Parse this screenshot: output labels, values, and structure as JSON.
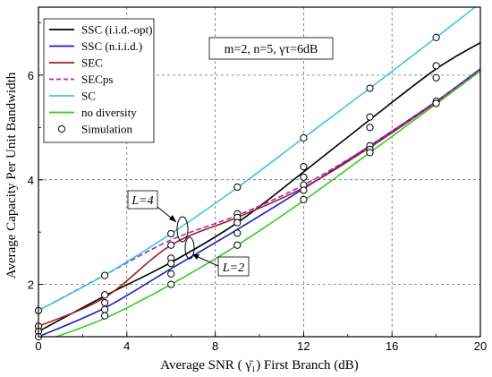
{
  "chart_data": {
    "type": "line",
    "xlabel": "Average SNR ( γ̄₁) First Branch (dB)",
    "ylabel": "Average Capacity Per Unit Bandwidth",
    "xlim": [
      0,
      20
    ],
    "ylim": [
      1,
      7.3
    ],
    "xticks": [
      0,
      4,
      8,
      12,
      16,
      20
    ],
    "yticks": [
      2,
      4,
      6
    ],
    "grid": true,
    "legend_position": "top-left",
    "series": [
      {
        "name": "SSC (i.i.d.-opt)",
        "color": "#000000",
        "dash": "solid",
        "x": [
          0,
          3,
          6,
          9,
          12,
          15,
          18,
          20
        ],
        "y": [
          1.1,
          1.78,
          2.42,
          3.18,
          4.15,
          5.15,
          6.12,
          6.62
        ]
      },
      {
        "name": "SSC (n.i.i.d.)",
        "color": "#1f1fbf",
        "dash": "solid",
        "x": [
          0,
          3,
          6,
          9,
          12,
          15,
          18,
          20
        ],
        "y": [
          1.0,
          1.55,
          2.3,
          3.05,
          3.83,
          4.65,
          5.5,
          6.12
        ]
      },
      {
        "name": "SEC",
        "color": "#a02020",
        "dash": "solid",
        "x": [
          0,
          3,
          6,
          9,
          12,
          15,
          18,
          20
        ],
        "y": [
          1.2,
          1.75,
          2.75,
          3.28,
          3.85,
          4.62,
          5.48,
          6.1
        ]
      },
      {
        "name": "SECps",
        "color": "#9b30c0",
        "dash": "dashed",
        "x": [
          0,
          3,
          6,
          9,
          12,
          15,
          18,
          20
        ],
        "y": [
          1.5,
          2.18,
          2.85,
          3.32,
          3.9,
          4.65,
          5.5,
          6.1
        ]
      },
      {
        "name": "SC",
        "color": "#3fc4e8",
        "dash": "solid",
        "x": [
          0,
          3,
          6,
          9,
          12,
          15,
          18,
          20
        ],
        "y": [
          1.5,
          2.18,
          2.97,
          3.85,
          4.8,
          5.75,
          6.72,
          7.38
        ]
      },
      {
        "name": "no diversity",
        "color": "#33cc22",
        "dash": "solid",
        "x": [
          0,
          3,
          6,
          9,
          12,
          15,
          18,
          20
        ],
        "y": [
          0.88,
          1.35,
          2.0,
          2.75,
          3.6,
          4.52,
          5.45,
          6.08
        ]
      }
    ],
    "simulation": {
      "name": "Simulation",
      "points": [
        [
          0,
          1.5
        ],
        [
          0,
          1.2
        ],
        [
          0,
          1.1
        ],
        [
          0,
          1.0
        ],
        [
          3,
          2.17
        ],
        [
          3,
          1.8
        ],
        [
          3,
          1.65
        ],
        [
          3,
          1.52
        ],
        [
          3,
          1.4
        ],
        [
          6,
          2.97
        ],
        [
          6,
          2.75
        ],
        [
          6,
          2.5
        ],
        [
          6,
          2.4
        ],
        [
          6,
          2.2
        ],
        [
          6,
          2.0
        ],
        [
          9,
          3.86
        ],
        [
          9,
          3.35
        ],
        [
          9,
          3.28
        ],
        [
          9,
          3.18
        ],
        [
          9,
          2.98
        ],
        [
          9,
          2.75
        ],
        [
          12,
          4.8
        ],
        [
          12,
          4.25
        ],
        [
          12,
          4.05
        ],
        [
          12,
          3.9
        ],
        [
          12,
          3.8
        ],
        [
          12,
          3.62
        ],
        [
          15,
          5.75
        ],
        [
          15,
          5.2
        ],
        [
          15,
          5.0
        ],
        [
          15,
          4.65
        ],
        [
          15,
          4.58
        ],
        [
          15,
          4.52
        ],
        [
          18,
          6.72
        ],
        [
          18,
          6.18
        ],
        [
          18,
          5.95
        ],
        [
          18,
          5.5
        ],
        [
          18,
          5.46
        ]
      ]
    },
    "annotations": [
      {
        "text": "m=2, n=5, γτ=6dB"
      },
      {
        "text": "L=4"
      },
      {
        "text": "L=2"
      }
    ]
  }
}
